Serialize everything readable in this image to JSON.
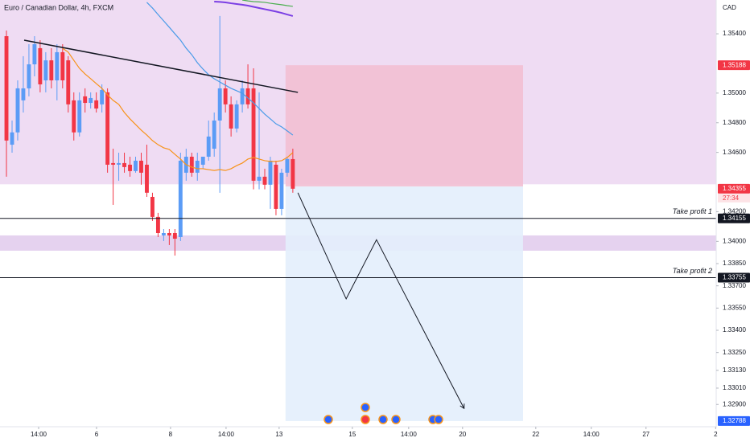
{
  "chart_data": {
    "type": "candlestick",
    "title": "Euro / Canadian Dollar, 4h, FXCM",
    "y_axis_label": "CAD",
    "up_color": "#5b9cf6",
    "down_color": "#f23645",
    "open": [
      1.35384,
      1.34652,
      1.34735,
      1.34951,
      1.35032,
      1.35194,
      1.35303,
      1.35086,
      1.35221,
      1.35086,
      1.35276,
      1.35221,
      1.34951,
      1.34735,
      1.34978,
      1.34934,
      1.34951,
      1.34924,
      1.35005,
      1.34528,
      1.34517,
      1.34528,
      1.34517,
      1.34474,
      1.34544,
      1.34517,
      1.343,
      1.34165,
      1.3404,
      1.34056,
      1.34056,
      1.34029,
      1.34463,
      1.34571,
      1.34463,
      1.34517,
      1.34571,
      1.34625,
      1.34815,
      1.35032,
      1.34924,
      1.34761,
      1.34924,
      1.35032,
      1.35032,
      1.34409,
      1.34436,
      1.34382,
      1.34517,
      1.34219,
      1.34463,
      1.34555
    ],
    "high": [
      1.35422,
      1.34815,
      1.35086,
      1.35249,
      1.3533,
      1.35384,
      1.35357,
      1.35276,
      1.35303,
      1.3533,
      1.3533,
      1.35249,
      1.35005,
      1.35005,
      1.35032,
      1.35005,
      1.35005,
      1.35059,
      1.35032,
      1.34625,
      1.34598,
      1.34598,
      1.34571,
      1.34571,
      1.34598,
      1.34652,
      1.34328,
      1.34192,
      1.34083,
      1.34083,
      1.34083,
      1.34598,
      1.34625,
      1.34598,
      1.34598,
      1.34571,
      1.34815,
      1.34869,
      1.3552,
      1.35086,
      1.34978,
      1.34951,
      1.35086,
      1.35194,
      1.35167,
      1.35005,
      1.3449,
      1.34571,
      1.34544,
      1.3449,
      1.34571,
      1.34625
    ],
    "low": [
      1.34436,
      1.34598,
      1.3468,
      1.34869,
      1.34978,
      1.35113,
      1.35005,
      1.35005,
      1.35032,
      1.34951,
      1.35032,
      1.34869,
      1.3468,
      1.34707,
      1.34869,
      1.34896,
      1.34869,
      1.34869,
      1.34463,
      1.34246,
      1.34409,
      1.34463,
      1.34436,
      1.34463,
      1.34382,
      1.343,
      1.34138,
      1.34029,
      1.34002,
      1.33975,
      1.33904,
      1.34002,
      1.34409,
      1.34436,
      1.34409,
      1.3449,
      1.34544,
      1.34571,
      1.34328,
      1.34869,
      1.34707,
      1.34735,
      1.34869,
      1.34896,
      1.34351,
      1.34351,
      1.34351,
      1.34219,
      1.34176,
      1.34176,
      1.34436,
      1.34328
    ],
    "close": [
      1.3468,
      1.34735,
      1.35032,
      1.35032,
      1.35194,
      1.3533,
      1.35059,
      1.35221,
      1.35086,
      1.35276,
      1.35086,
      1.34924,
      1.34735,
      1.34951,
      1.34934,
      1.34967,
      1.34896,
      1.35021,
      1.34517,
      1.34517,
      1.34528,
      1.34501,
      1.34474,
      1.34544,
      1.34463,
      1.34328,
      1.34165,
      1.34056,
      1.34056,
      1.3404,
      1.34018,
      1.34544,
      1.34571,
      1.34463,
      1.34544,
      1.34571,
      1.34707,
      1.34815,
      1.35032,
      1.34924,
      1.34761,
      1.34924,
      1.35032,
      1.34924,
      1.34409,
      1.34436,
      1.34382,
      1.34544,
      1.34219,
      1.34463,
      1.34555,
      1.34355
    ],
    "countdown": "27:34",
    "indicators": [
      {
        "color": "#f7931a",
        "width": 1.2,
        "values": [
          null,
          null,
          null,
          null,
          null,
          null,
          null,
          null,
          null,
          null,
          1.35303,
          1.35276,
          1.35221,
          1.35167,
          1.35129,
          1.35097,
          1.35064,
          1.35032,
          1.34988,
          1.34951,
          1.34924,
          1.34869,
          1.34826,
          1.34788,
          1.3475,
          1.34717,
          1.3468,
          1.34652,
          1.34631,
          1.3462,
          1.34587,
          1.34555,
          1.34517,
          1.34501,
          1.3449,
          1.3449,
          1.34484,
          1.34478,
          1.34484,
          1.34478,
          1.3449,
          1.34511,
          1.34528,
          1.34555,
          1.34566,
          1.34555,
          1.34544,
          1.34539,
          1.34539,
          1.34544,
          1.34566,
          1.34598
        ]
      },
      {
        "color": "#4a9be8",
        "width": 1.2,
        "values": [
          null,
          null,
          null,
          null,
          null,
          null,
          null,
          null,
          null,
          null,
          null,
          null,
          null,
          null,
          null,
          null,
          null,
          null,
          null,
          null,
          null,
          null,
          null,
          null,
          null,
          1.35612,
          1.35574,
          1.3553,
          1.35487,
          1.35444,
          1.354,
          1.35357,
          1.35303,
          1.35259,
          1.35205,
          1.35162,
          1.35124,
          1.35097,
          1.35075,
          1.35053,
          1.35032,
          1.35016,
          1.34999,
          1.34967,
          1.34934,
          1.34896,
          1.34858,
          1.34826,
          1.34793,
          1.34772,
          1.34745,
          1.34717
        ]
      },
      {
        "color": "#7b3fe4",
        "width": 2,
        "values": [
          null,
          null,
          null,
          null,
          null,
          null,
          null,
          null,
          null,
          null,
          null,
          null,
          null,
          null,
          null,
          null,
          null,
          null,
          null,
          null,
          null,
          null,
          null,
          null,
          null,
          null,
          null,
          null,
          null,
          null,
          null,
          null,
          null,
          null,
          null,
          null,
          null,
          1.35617,
          1.35615,
          1.35612,
          1.35606,
          1.35601,
          1.35596,
          1.3559,
          1.35582,
          1.35574,
          1.35566,
          1.35558,
          1.3555,
          1.35541,
          1.3553,
          1.3552
        ]
      },
      {
        "color": "#4caf50",
        "width": 1.2,
        "values": [
          null,
          null,
          null,
          null,
          null,
          null,
          null,
          null,
          null,
          null,
          null,
          null,
          null,
          null,
          null,
          null,
          null,
          null,
          null,
          null,
          null,
          null,
          null,
          null,
          null,
          null,
          null,
          null,
          null,
          null,
          null,
          null,
          null,
          null,
          null,
          null,
          null,
          null,
          null,
          null,
          null,
          null,
          1.35628,
          1.35622,
          1.35617,
          1.35615,
          1.35612,
          1.35606,
          1.35601,
          1.35596,
          1.3559,
          1.35585
        ]
      }
    ],
    "xlim": [
      -1.15,
      126.4
    ],
    "xticks": [
      {
        "value": 5.73,
        "label": "14:00"
      },
      {
        "value": 16.04,
        "label": "6"
      },
      {
        "value": 29.22,
        "label": "8"
      },
      {
        "value": 39.11,
        "label": "14:00"
      },
      {
        "value": 48.56,
        "label": "13"
      },
      {
        "value": 61.6,
        "label": "15"
      },
      {
        "value": 71.63,
        "label": "14:00"
      },
      {
        "value": 81.23,
        "label": "20"
      },
      {
        "value": 94.27,
        "label": "22"
      },
      {
        "value": 104.15,
        "label": "14:00"
      },
      {
        "value": 113.9,
        "label": "27"
      },
      {
        "value": 126.3,
        "label": "2"
      }
    ],
    "ylim": [
      1.32755,
      1.35628
    ],
    "yticks": [
      {
        "value": 1.354,
        "label": "1.35400"
      },
      {
        "value": 1.35,
        "label": "1.35000"
      },
      {
        "value": 1.348,
        "label": "1.34800"
      },
      {
        "value": 1.346,
        "label": "1.34600"
      },
      {
        "value": 1.342,
        "label": "1.34200"
      },
      {
        "value": 1.34,
        "label": "1.34000"
      },
      {
        "value": 1.3385,
        "label": "1.33850"
      },
      {
        "value": 1.337,
        "label": "1.33700"
      },
      {
        "value": 1.3355,
        "label": "1.33550"
      },
      {
        "value": 1.334,
        "label": "1.33400"
      },
      {
        "value": 1.3325,
        "label": "1.33250"
      },
      {
        "value": 1.3313,
        "label": "1.33130"
      },
      {
        "value": 1.3301,
        "label": "1.33010"
      },
      {
        "value": 1.329,
        "label": "1.32900"
      }
    ],
    "zones": [
      {
        "from": 1.34385,
        "to": 1.35628,
        "color": "#efdcf3"
      },
      {
        "from": 1.33937,
        "to": 1.3404,
        "color": "#e5d2ef"
      }
    ],
    "position": {
      "stop": 1.35188,
      "entry": 1.3437,
      "target": 1.32788,
      "x_start": 49.7,
      "x_end": 92.0,
      "stop_color": "#f2bfd3",
      "target_color": "#e3eefc"
    },
    "trendline": {
      "x": [
        3.15,
        51.9
      ],
      "y": [
        1.35357,
        1.35005
      ],
      "color": "#131722"
    },
    "take_profits": [
      {
        "value": 1.34155,
        "name": "Take profit 1"
      },
      {
        "value": 1.33755,
        "name": "Take profit 2"
      }
    ],
    "projection": {
      "x": [
        51.9,
        60.5,
        65.9,
        81.5
      ],
      "y": [
        1.34328,
        1.33612,
        1.34011,
        1.32873
      ]
    }
  }
}
